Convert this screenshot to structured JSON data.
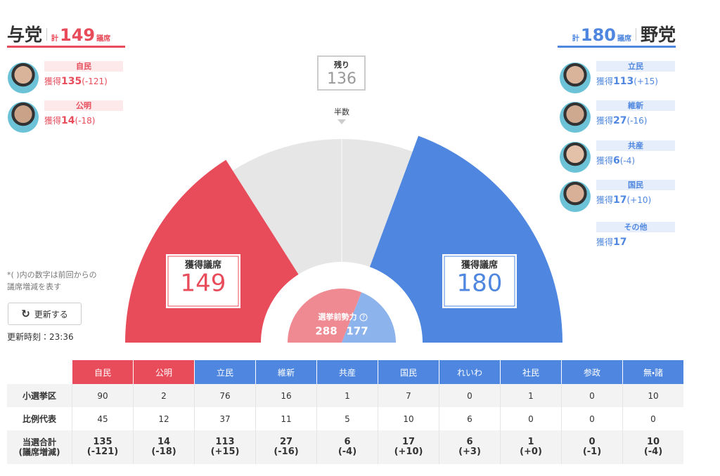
{
  "ruling": {
    "label": "与党",
    "total_prefix": "計",
    "total": 149,
    "total_suffix": "議席",
    "parties": [
      {
        "name": "自民",
        "gained_label": "獲得",
        "seats": 135,
        "change": "(-121)"
      },
      {
        "name": "公明",
        "gained_label": "獲得",
        "seats": 14,
        "change": "(-18)"
      }
    ]
  },
  "opposition": {
    "label": "野党",
    "total_prefix": "計",
    "total": 180,
    "total_suffix": "議席",
    "parties": [
      {
        "name": "立民",
        "gained_label": "獲得",
        "seats": 113,
        "change": "(+15)"
      },
      {
        "name": "維新",
        "gained_label": "獲得",
        "seats": 27,
        "change": "(-16)"
      },
      {
        "name": "共産",
        "gained_label": "獲得",
        "seats": 6,
        "change": "(-4)"
      },
      {
        "name": "国民",
        "gained_label": "獲得",
        "seats": 17,
        "change": "(+10)"
      },
      {
        "name": "その他",
        "gained_label": "獲得",
        "seats": 17
      }
    ]
  },
  "remaining": {
    "label": "残り",
    "value": 136
  },
  "majority_label": "半数",
  "gauge_box_label": "獲得議席",
  "pre_election": {
    "label": "選挙前勢力",
    "help": "?",
    "ruling": 288,
    "opposition": 177
  },
  "note": [
    "*( )内の数字は前回からの",
    "議席増減を表す"
  ],
  "refresh_button": "更新する",
  "updated": "更新時刻：23:36",
  "table": {
    "columns": [
      "自民",
      "公明",
      "立民",
      "維新",
      "共産",
      "国民",
      "れいわ",
      "社民",
      "参政",
      "無・諸"
    ],
    "rows": [
      {
        "label": [
          "小選挙区"
        ],
        "values": [
          90,
          2,
          76,
          16,
          1,
          7,
          0,
          1,
          0,
          10
        ]
      },
      {
        "label": [
          "比例代表"
        ],
        "values": [
          45,
          12,
          37,
          11,
          5,
          10,
          6,
          0,
          0,
          0
        ]
      },
      {
        "label": [
          "当選合計",
          "(議席増減)"
        ],
        "values": [
          135,
          14,
          113,
          27,
          6,
          17,
          6,
          1,
          0,
          10
        ],
        "changes": [
          "(-121)",
          "(-18)",
          "(+15)",
          "(-16)",
          "(-4)",
          "(+10)",
          "(+3)",
          "(+0)",
          "(-1)",
          "(-4)"
        ]
      }
    ]
  }
}
